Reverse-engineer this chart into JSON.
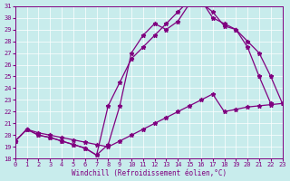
{
  "xlabel": "Windchill (Refroidissement éolien,°C)",
  "xlim": [
    0,
    23
  ],
  "ylim": [
    18,
    31
  ],
  "yticks": [
    18,
    19,
    20,
    21,
    22,
    23,
    24,
    25,
    26,
    27,
    28,
    29,
    30,
    31
  ],
  "xticks": [
    0,
    1,
    2,
    3,
    4,
    5,
    6,
    7,
    8,
    9,
    10,
    11,
    12,
    13,
    14,
    15,
    16,
    17,
    18,
    19,
    20,
    21,
    22,
    23
  ],
  "bg_color": "#c8ecec",
  "line_color": "#800080",
  "grid_color": "#ffffff",
  "curve1_x": [
    0,
    1,
    2,
    3,
    4,
    5,
    6,
    7,
    8,
    9,
    10,
    11,
    12,
    13,
    14,
    15,
    16,
    17,
    18,
    19,
    20,
    21,
    22
  ],
  "curve1_y": [
    19.5,
    20.5,
    20.0,
    19.8,
    19.5,
    19.2,
    18.9,
    18.3,
    19.2,
    22.5,
    27.0,
    28.5,
    29.5,
    29.0,
    29.7,
    31.2,
    31.3,
    30.5,
    29.3,
    29.0,
    27.5,
    25.0,
    22.7
  ],
  "curve2_x": [
    0,
    1,
    2,
    3,
    4,
    5,
    6,
    7,
    8,
    9,
    10,
    11,
    12,
    13,
    14,
    15,
    16,
    17,
    18,
    19,
    20,
    21,
    22,
    23
  ],
  "curve2_y": [
    19.5,
    20.5,
    20.0,
    19.8,
    19.5,
    19.2,
    18.9,
    18.3,
    22.5,
    24.5,
    26.5,
    27.5,
    28.5,
    29.5,
    30.5,
    31.5,
    31.5,
    30.0,
    29.5,
    29.0,
    28.0,
    27.0,
    25.0,
    22.7
  ],
  "curve3_x": [
    0,
    1,
    2,
    3,
    4,
    5,
    6,
    7,
    8,
    9,
    10,
    11,
    12,
    13,
    14,
    15,
    16,
    17,
    18,
    19,
    20,
    21,
    22,
    23
  ],
  "curve3_y": [
    19.5,
    20.5,
    20.2,
    20.0,
    19.8,
    19.6,
    19.4,
    19.2,
    19.0,
    19.5,
    20.0,
    20.5,
    21.0,
    21.5,
    22.0,
    22.5,
    23.0,
    23.5,
    22.0,
    22.2,
    22.4,
    22.5,
    22.6,
    22.7
  ]
}
